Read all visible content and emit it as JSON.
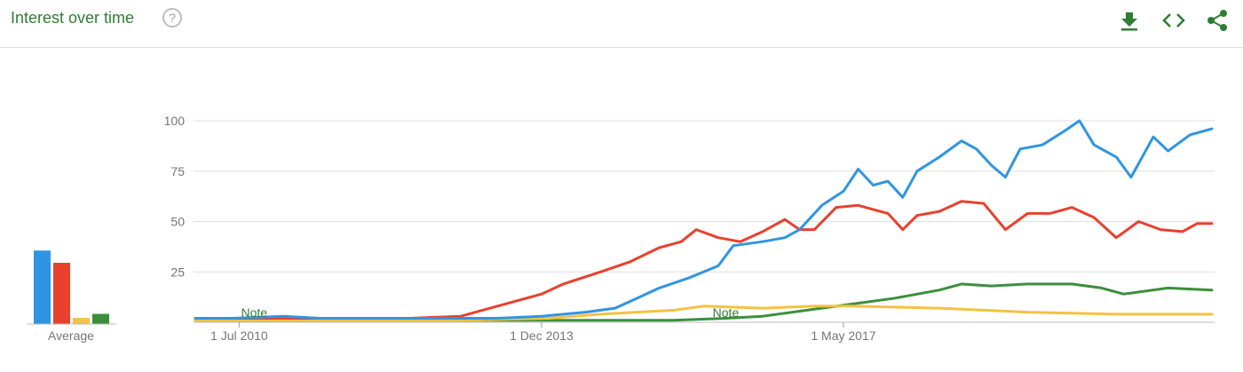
{
  "header": {
    "title": "Interest over time",
    "help_glyph": "?",
    "tools": [
      {
        "name": "download-icon",
        "color": "#2e7d32"
      },
      {
        "name": "embed-code-icon",
        "color": "#2e7d32"
      },
      {
        "name": "share-icon",
        "color": "#2e7d32"
      }
    ]
  },
  "average_panel": {
    "label": "Average",
    "values": [
      36,
      30,
      3,
      5
    ]
  },
  "chart_data": {
    "type": "line",
    "ylim": [
      0,
      100
    ],
    "yticks": [
      "25",
      "50",
      "75",
      "100"
    ],
    "xticks": [
      {
        "label": "1 Jul 2010",
        "date": "2010-07-01"
      },
      {
        "label": "1 Dec 2013",
        "date": "2013-12-01"
      },
      {
        "label": "1 May 2017",
        "date": "2017-05-01"
      }
    ],
    "annotations": [
      {
        "label": "Note",
        "date": "2010-09-01"
      },
      {
        "label": "Note",
        "date": "2016-01-01"
      }
    ],
    "grid": true,
    "series": [
      {
        "color": "#2f95e3",
        "points": [
          [
            "2010-01-01",
            2
          ],
          [
            "2010-06-01",
            2
          ],
          [
            "2011-01-01",
            3
          ],
          [
            "2011-06-01",
            2
          ],
          [
            "2012-01-01",
            2
          ],
          [
            "2012-06-01",
            2
          ],
          [
            "2013-01-01",
            2
          ],
          [
            "2013-06-01",
            2
          ],
          [
            "2013-12-01",
            3
          ],
          [
            "2014-06-01",
            5
          ],
          [
            "2014-10-01",
            7
          ],
          [
            "2015-01-01",
            12
          ],
          [
            "2015-04-01",
            17
          ],
          [
            "2015-08-01",
            22
          ],
          [
            "2015-12-01",
            28
          ],
          [
            "2016-02-01",
            38
          ],
          [
            "2016-06-01",
            40
          ],
          [
            "2016-09-01",
            42
          ],
          [
            "2016-11-01",
            46
          ],
          [
            "2017-02-01",
            58
          ],
          [
            "2017-05-01",
            65
          ],
          [
            "2017-07-01",
            76
          ],
          [
            "2017-09-01",
            68
          ],
          [
            "2017-11-01",
            70
          ],
          [
            "2018-01-01",
            62
          ],
          [
            "2018-03-01",
            75
          ],
          [
            "2018-06-01",
            82
          ],
          [
            "2018-09-01",
            90
          ],
          [
            "2018-11-01",
            86
          ],
          [
            "2019-01-01",
            78
          ],
          [
            "2019-03-01",
            72
          ],
          [
            "2019-05-01",
            86
          ],
          [
            "2019-08-01",
            88
          ],
          [
            "2019-11-01",
            95
          ],
          [
            "2020-01-01",
            100
          ],
          [
            "2020-03-01",
            88
          ],
          [
            "2020-06-01",
            82
          ],
          [
            "2020-08-01",
            72
          ],
          [
            "2020-11-01",
            92
          ],
          [
            "2021-01-01",
            85
          ],
          [
            "2021-04-01",
            93
          ],
          [
            "2021-07-01",
            96
          ]
        ]
      },
      {
        "color": "#e8412e",
        "points": [
          [
            "2010-01-01",
            2
          ],
          [
            "2010-06-01",
            2
          ],
          [
            "2011-06-01",
            2
          ],
          [
            "2012-06-01",
            2
          ],
          [
            "2013-01-01",
            3
          ],
          [
            "2013-04-01",
            6
          ],
          [
            "2013-08-01",
            10
          ],
          [
            "2013-12-01",
            14
          ],
          [
            "2014-03-01",
            19
          ],
          [
            "2014-08-01",
            25
          ],
          [
            "2014-12-01",
            30
          ],
          [
            "2015-04-01",
            37
          ],
          [
            "2015-07-01",
            40
          ],
          [
            "2015-09-01",
            46
          ],
          [
            "2015-12-01",
            42
          ],
          [
            "2016-03-01",
            40
          ],
          [
            "2016-06-01",
            45
          ],
          [
            "2016-09-01",
            51
          ],
          [
            "2016-11-01",
            46
          ],
          [
            "2017-01-01",
            46
          ],
          [
            "2017-04-01",
            57
          ],
          [
            "2017-07-01",
            58
          ],
          [
            "2017-09-01",
            56
          ],
          [
            "2017-11-01",
            54
          ],
          [
            "2018-01-01",
            46
          ],
          [
            "2018-03-01",
            53
          ],
          [
            "2018-06-01",
            55
          ],
          [
            "2018-09-01",
            60
          ],
          [
            "2018-12-01",
            59
          ],
          [
            "2019-03-01",
            46
          ],
          [
            "2019-06-01",
            54
          ],
          [
            "2019-09-01",
            54
          ],
          [
            "2019-12-01",
            57
          ],
          [
            "2020-03-01",
            52
          ],
          [
            "2020-06-01",
            42
          ],
          [
            "2020-09-01",
            50
          ],
          [
            "2020-12-01",
            46
          ],
          [
            "2021-03-01",
            45
          ],
          [
            "2021-05-01",
            49
          ],
          [
            "2021-07-01",
            49
          ]
        ]
      },
      {
        "color": "#f4c242",
        "points": [
          [
            "2010-01-01",
            1
          ],
          [
            "2011-06-01",
            1
          ],
          [
            "2013-01-01",
            1
          ],
          [
            "2014-01-01",
            2
          ],
          [
            "2014-08-01",
            4
          ],
          [
            "2015-06-01",
            6
          ],
          [
            "2015-10-01",
            8
          ],
          [
            "2016-06-01",
            7
          ],
          [
            "2017-01-01",
            8
          ],
          [
            "2017-06-01",
            8
          ],
          [
            "2018-06-01",
            7
          ],
          [
            "2019-06-01",
            5
          ],
          [
            "2020-06-01",
            4
          ],
          [
            "2021-07-01",
            4
          ]
        ]
      },
      {
        "color": "#3b8f3c",
        "points": [
          [
            "2010-01-01",
            1
          ],
          [
            "2011-06-01",
            1
          ],
          [
            "2013-01-01",
            1
          ],
          [
            "2013-06-01",
            1
          ],
          [
            "2014-01-01",
            1
          ],
          [
            "2015-06-01",
            1
          ],
          [
            "2016-01-01",
            2
          ],
          [
            "2016-06-01",
            3
          ],
          [
            "2016-12-01",
            6
          ],
          [
            "2017-06-01",
            9
          ],
          [
            "2017-12-01",
            12
          ],
          [
            "2018-06-01",
            16
          ],
          [
            "2018-09-01",
            19
          ],
          [
            "2019-01-01",
            18
          ],
          [
            "2019-06-01",
            19
          ],
          [
            "2019-12-01",
            19
          ],
          [
            "2020-04-01",
            17
          ],
          [
            "2020-07-01",
            14
          ],
          [
            "2021-01-01",
            17
          ],
          [
            "2021-07-01",
            16
          ]
        ]
      }
    ]
  }
}
